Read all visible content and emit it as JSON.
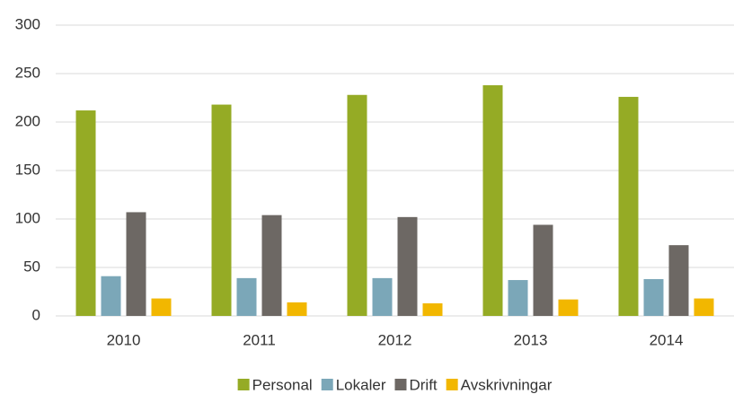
{
  "chart_data": {
    "type": "bar",
    "categories": [
      "2010",
      "2011",
      "2012",
      "2013",
      "2014"
    ],
    "series": [
      {
        "name": "Personal",
        "color": "#95ab25",
        "values": [
          212,
          218,
          228,
          238,
          226
        ]
      },
      {
        "name": "Lokaler",
        "color": "#7ba7b8",
        "values": [
          41,
          39,
          39,
          37,
          38
        ]
      },
      {
        "name": "Drift",
        "color": "#6d6864",
        "values": [
          107,
          104,
          102,
          94,
          73
        ]
      },
      {
        "name": "Avskrivningar",
        "color": "#f2b700",
        "values": [
          18,
          14,
          13,
          17,
          18
        ]
      }
    ],
    "ylim": [
      0,
      300
    ],
    "yticks": [
      0,
      50,
      100,
      150,
      200,
      250,
      300
    ],
    "grid": true,
    "legend": "bottom"
  }
}
